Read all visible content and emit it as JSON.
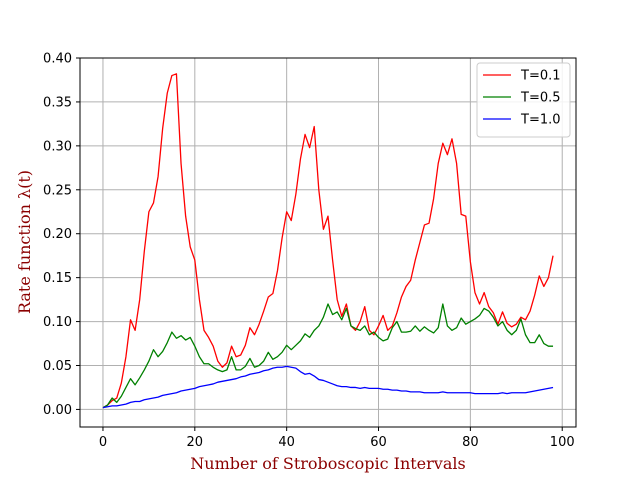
{
  "chart_data": {
    "type": "line",
    "xlabel": "Number of Stroboscopic Intervals",
    "ylabel": "Rate function λ(t)",
    "xlim": [
      -5,
      103
    ],
    "ylim": [
      -0.02,
      0.4
    ],
    "xticks": [
      0,
      20,
      40,
      60,
      80,
      100
    ],
    "yticks": [
      0.0,
      0.05,
      0.1,
      0.15,
      0.2,
      0.25,
      0.3,
      0.35,
      0.4
    ],
    "xtick_labels": [
      "0",
      "20",
      "40",
      "60",
      "80",
      "100"
    ],
    "ytick_labels": [
      "0.00",
      "0.05",
      "0.10",
      "0.15",
      "0.20",
      "0.25",
      "0.30",
      "0.35",
      "0.40"
    ],
    "grid": true,
    "legend": "top-right",
    "x": [
      0,
      1,
      2,
      3,
      4,
      5,
      6,
      7,
      8,
      9,
      10,
      11,
      12,
      13,
      14,
      15,
      16,
      17,
      18,
      19,
      20,
      21,
      22,
      23,
      24,
      25,
      26,
      27,
      28,
      29,
      30,
      31,
      32,
      33,
      34,
      35,
      36,
      37,
      38,
      39,
      40,
      41,
      42,
      43,
      44,
      45,
      46,
      47,
      48,
      49,
      50,
      51,
      52,
      53,
      54,
      55,
      56,
      57,
      58,
      59,
      60,
      61,
      62,
      63,
      64,
      65,
      66,
      67,
      68,
      69,
      70,
      71,
      72,
      73,
      74,
      75,
      76,
      77,
      78,
      79,
      80,
      81,
      82,
      83,
      84,
      85,
      86,
      87,
      88,
      89,
      90,
      91,
      92,
      93,
      94,
      95,
      96,
      97,
      98
    ],
    "series": [
      {
        "name": "T=0.1",
        "color": "#ff0000",
        "values": [
          0.002,
          0.005,
          0.01,
          0.013,
          0.03,
          0.06,
          0.102,
          0.09,
          0.125,
          0.18,
          0.225,
          0.235,
          0.265,
          0.32,
          0.36,
          0.38,
          0.382,
          0.28,
          0.22,
          0.185,
          0.17,
          0.125,
          0.09,
          0.082,
          0.072,
          0.055,
          0.048,
          0.053,
          0.072,
          0.06,
          0.062,
          0.073,
          0.093,
          0.085,
          0.097,
          0.112,
          0.128,
          0.132,
          0.158,
          0.195,
          0.225,
          0.215,
          0.245,
          0.285,
          0.313,
          0.298,
          0.322,
          0.25,
          0.205,
          0.22,
          0.17,
          0.125,
          0.106,
          0.12,
          0.095,
          0.09,
          0.1,
          0.117,
          0.09,
          0.085,
          0.095,
          0.107,
          0.09,
          0.095,
          0.11,
          0.128,
          0.14,
          0.147,
          0.17,
          0.19,
          0.21,
          0.212,
          0.24,
          0.28,
          0.303,
          0.29,
          0.308,
          0.28,
          0.222,
          0.22,
          0.168,
          0.133,
          0.12,
          0.133,
          0.117,
          0.11,
          0.097,
          0.111,
          0.098,
          0.094,
          0.097,
          0.105,
          0.102,
          0.112,
          0.13,
          0.152,
          0.14,
          0.15,
          0.175
        ]
      },
      {
        "name": "T=0.5",
        "color": "#008000",
        "values": [
          0.002,
          0.005,
          0.013,
          0.008,
          0.015,
          0.025,
          0.035,
          0.028,
          0.036,
          0.045,
          0.055,
          0.068,
          0.06,
          0.066,
          0.076,
          0.088,
          0.081,
          0.084,
          0.079,
          0.082,
          0.072,
          0.06,
          0.052,
          0.052,
          0.048,
          0.045,
          0.043,
          0.045,
          0.06,
          0.045,
          0.045,
          0.049,
          0.058,
          0.048,
          0.05,
          0.055,
          0.065,
          0.057,
          0.06,
          0.065,
          0.073,
          0.068,
          0.073,
          0.078,
          0.086,
          0.082,
          0.09,
          0.095,
          0.105,
          0.12,
          0.108,
          0.111,
          0.102,
          0.115,
          0.095,
          0.092,
          0.09,
          0.095,
          0.085,
          0.088,
          0.082,
          0.078,
          0.08,
          0.093,
          0.1,
          0.088,
          0.088,
          0.089,
          0.095,
          0.089,
          0.094,
          0.09,
          0.087,
          0.093,
          0.12,
          0.095,
          0.09,
          0.093,
          0.104,
          0.097,
          0.1,
          0.103,
          0.107,
          0.115,
          0.112,
          0.105,
          0.095,
          0.1,
          0.09,
          0.085,
          0.09,
          0.103,
          0.085,
          0.076,
          0.076,
          0.085,
          0.075,
          0.072,
          0.072
        ]
      },
      {
        "name": "T=1.0",
        "color": "#0000ff",
        "values": [
          0.002,
          0.003,
          0.004,
          0.004,
          0.005,
          0.006,
          0.008,
          0.009,
          0.009,
          0.011,
          0.012,
          0.013,
          0.014,
          0.016,
          0.017,
          0.018,
          0.019,
          0.021,
          0.022,
          0.023,
          0.024,
          0.026,
          0.027,
          0.028,
          0.029,
          0.031,
          0.032,
          0.033,
          0.034,
          0.035,
          0.037,
          0.038,
          0.04,
          0.041,
          0.042,
          0.044,
          0.045,
          0.047,
          0.048,
          0.048,
          0.049,
          0.048,
          0.047,
          0.043,
          0.04,
          0.041,
          0.038,
          0.034,
          0.033,
          0.031,
          0.029,
          0.027,
          0.026,
          0.026,
          0.025,
          0.025,
          0.024,
          0.025,
          0.024,
          0.024,
          0.024,
          0.023,
          0.023,
          0.022,
          0.022,
          0.021,
          0.021,
          0.02,
          0.02,
          0.02,
          0.019,
          0.019,
          0.019,
          0.019,
          0.02,
          0.019,
          0.019,
          0.019,
          0.019,
          0.019,
          0.019,
          0.018,
          0.018,
          0.018,
          0.018,
          0.018,
          0.018,
          0.019,
          0.018,
          0.019,
          0.019,
          0.019,
          0.019,
          0.02,
          0.021,
          0.022,
          0.023,
          0.024,
          0.025
        ]
      }
    ]
  }
}
